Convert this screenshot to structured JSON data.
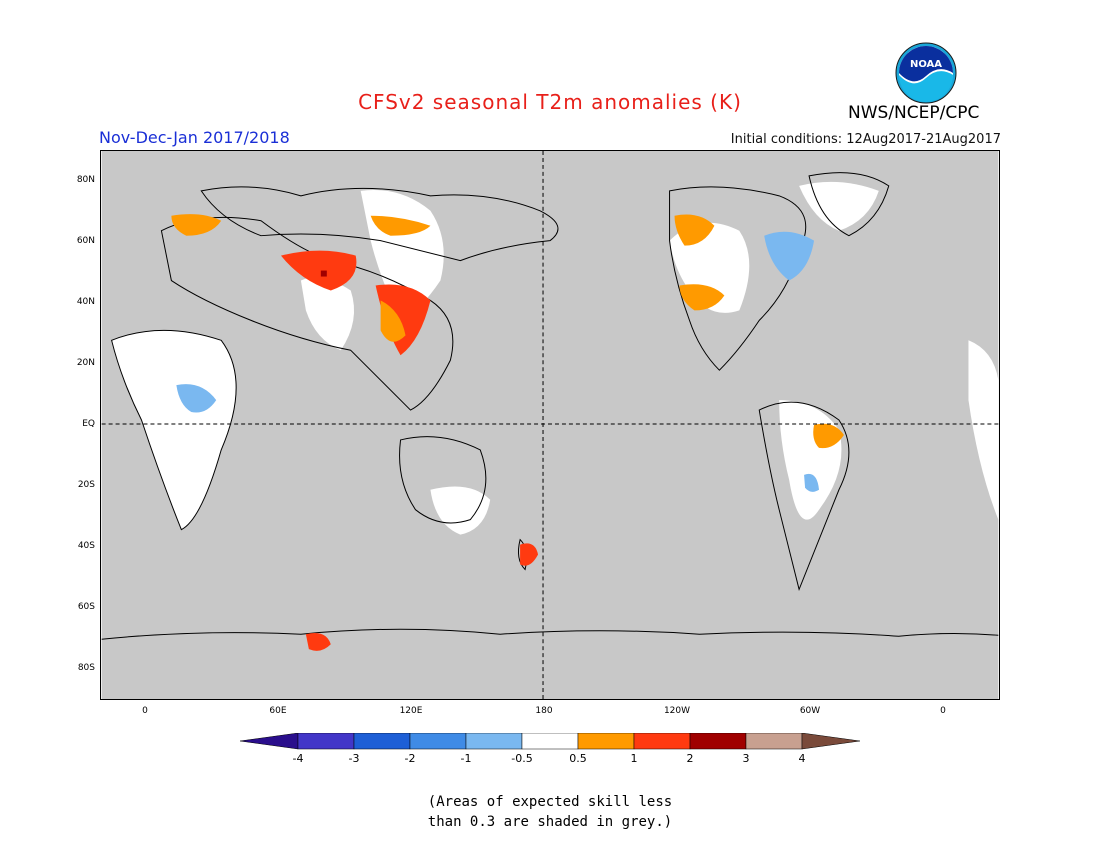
{
  "header": {
    "title": "CFSv2 seasonal T2m anomalies (K)",
    "period": "Nov-Dec-Jan 2017/2018",
    "initial_conditions": "Initial conditions: 12Aug2017-21Aug2017",
    "agency": "NWS/NCEP/CPC",
    "logo_text": "NOAA"
  },
  "map": {
    "latitude_labels": [
      "80N",
      "60N",
      "40N",
      "20N",
      "EQ",
      "20S",
      "40S",
      "60S",
      "80S"
    ],
    "longitude_labels": [
      "0",
      "60E",
      "120E",
      "180",
      "120W",
      "60W",
      "0"
    ],
    "background_grey": "#c8c8c8"
  },
  "colorbar": {
    "labels": [
      "-4",
      "-3",
      "-2",
      "-1",
      "-0.5",
      "0.5",
      "1",
      "2",
      "3",
      "4"
    ],
    "colors": [
      "#2a0e8c",
      "#4236c8",
      "#1e5fd6",
      "#3f8be6",
      "#7ab8f0",
      "#ffffff",
      "#ff9a00",
      "#ff3a10",
      "#a00000",
      "#c8a090",
      "#7a4a3a"
    ]
  },
  "footnote": {
    "line1": "(Areas of expected skill less",
    "line2": "than 0.3 are shaded in grey.)"
  }
}
